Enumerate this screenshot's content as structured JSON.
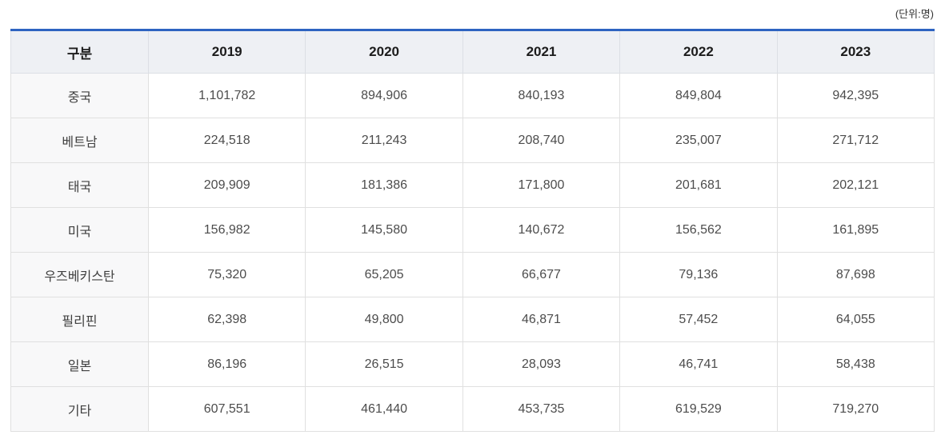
{
  "unit_label": "(단위:명)",
  "table": {
    "columns": [
      "구분",
      "2019",
      "2020",
      "2021",
      "2022",
      "2023"
    ],
    "rows": [
      {
        "label": "중국",
        "values": [
          "1,101,782",
          "894,906",
          "840,193",
          "849,804",
          "942,395"
        ]
      },
      {
        "label": "베트남",
        "values": [
          "224,518",
          "211,243",
          "208,740",
          "235,007",
          "271,712"
        ]
      },
      {
        "label": "태국",
        "values": [
          "209,909",
          "181,386",
          "171,800",
          "201,681",
          "202,121"
        ]
      },
      {
        "label": "미국",
        "values": [
          "156,982",
          "145,580",
          "140,672",
          "156,562",
          "161,895"
        ]
      },
      {
        "label": "우즈베키스탄",
        "values": [
          "75,320",
          "65,205",
          "66,677",
          "79,136",
          "87,698"
        ]
      },
      {
        "label": "필리핀",
        "values": [
          "62,398",
          "49,800",
          "46,871",
          "57,452",
          "64,055"
        ]
      },
      {
        "label": "일본",
        "values": [
          "86,196",
          "26,515",
          "28,093",
          "46,741",
          "58,438"
        ]
      },
      {
        "label": "기타",
        "values": [
          "607,551",
          "461,440",
          "453,735",
          "619,529",
          "719,270"
        ]
      }
    ]
  },
  "chart_data": {
    "type": "table",
    "unit": "명",
    "categories": [
      "2019",
      "2020",
      "2021",
      "2022",
      "2023"
    ],
    "series": [
      {
        "name": "중국",
        "values": [
          1101782,
          894906,
          840193,
          849804,
          942395
        ]
      },
      {
        "name": "베트남",
        "values": [
          224518,
          211243,
          208740,
          235007,
          271712
        ]
      },
      {
        "name": "태국",
        "values": [
          209909,
          181386,
          171800,
          201681,
          202121
        ]
      },
      {
        "name": "미국",
        "values": [
          156982,
          145580,
          140672,
          156562,
          161895
        ]
      },
      {
        "name": "우즈베키스탄",
        "values": [
          75320,
          65205,
          66677,
          79136,
          87698
        ]
      },
      {
        "name": "필리핀",
        "values": [
          62398,
          49800,
          46871,
          57452,
          64055
        ]
      },
      {
        "name": "일본",
        "values": [
          86196,
          26515,
          28093,
          46741,
          58438
        ]
      },
      {
        "name": "기타",
        "values": [
          607551,
          461440,
          453735,
          619529,
          719270
        ]
      }
    ]
  },
  "colors": {
    "accent_top_border": "#2e64c1",
    "header_bg": "#eef0f4",
    "row_label_bg": "#f8f8f9",
    "border": "#e0e0e0",
    "header_text": "#1c1c1c",
    "cell_text": "#4c4c4c"
  }
}
